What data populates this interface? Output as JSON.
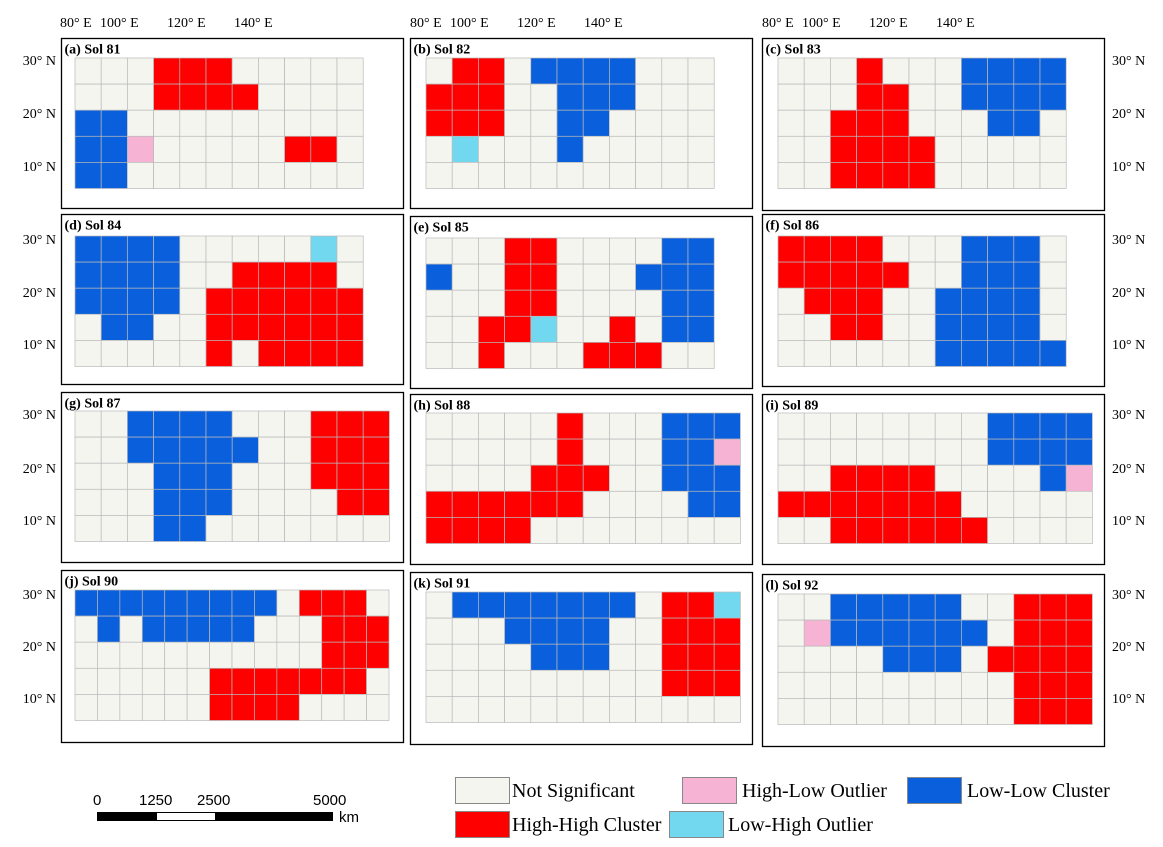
{
  "colors": {
    "NS": "#f5f5f0",
    "HH": "#ff0000",
    "HL": "#f7b3d4",
    "LL": "#0a5fdc",
    "LH": "#72d8f0",
    "grid": "#b9b9b9",
    "frame": "#000000"
  },
  "axes": {
    "lon_labels": [
      "80° E",
      "100° E",
      "120° E",
      "140° E"
    ],
    "lat_labels": [
      "30° N",
      "20° N",
      "10° N"
    ]
  },
  "panels": [
    {
      "title": "(a) Sol 81",
      "grid": [
        "...HHH.....",
        "...HHHH....",
        "LL.........",
        "LLP.....HH.",
        "LL........."
      ]
    },
    {
      "title": "(b) Sol 82",
      "grid": [
        ".HH.LLLL...",
        "HHH..LLL...",
        "HHH..LL....",
        ".C...L.....",
        "..........."
      ]
    },
    {
      "title": "(c) Sol 83",
      "grid": [
        "...H...LLLL",
        "...HH..LLLL",
        "..HHH...LL.",
        "..HHHH.....",
        "..HHHH....."
      ]
    },
    {
      "title": "(d) Sol 84",
      "grid": [
        "LLLL.....C.",
        "LLLL..HHHH.",
        "LLLL.HHHHHH",
        ".LL..HHHHHH",
        ".....H.HHHH"
      ]
    },
    {
      "title": "(e) Sol 85",
      "grid": [
        "...HH....LL",
        "L..HH...LLL",
        "...HH....LL",
        "..HHC..H.LL",
        "..H...HHH.."
      ]
    },
    {
      "title": "(f) Sol 86",
      "grid": [
        "HHHH...LLL.",
        "HHHHH..LLL.",
        ".HHH..LLLL.",
        "..HH..LLLL.",
        "......LLLLL"
      ]
    },
    {
      "title": "(g) Sol 87",
      "grid": [
        "..LLLL...HHH",
        "..LLLLL..HHH",
        "...LLL...HHH",
        "...LLL....HH",
        "...LL......."
      ]
    },
    {
      "title": "(h) Sol 88",
      "grid": [
        ".....H...LLL",
        ".....H...LLP",
        "....HHH..LLL",
        "HHHHHH....LL",
        "HHHH........"
      ]
    },
    {
      "title": "(i) Sol 89",
      "grid": [
        "........LLLL",
        "........LLLL",
        "..HHHH....LP",
        "HHHHHHH.....",
        "..HHHHHH...."
      ]
    },
    {
      "title": "(j) Sol 90",
      "grid": [
        "LLLLLLLLL.HHH.",
        ".L.LLLLL...HHH",
        "...........HHH",
        "......HHHHHHH.",
        "......HHHH...."
      ]
    },
    {
      "title": "(k) Sol 91",
      "grid": [
        ".LLLLLLL.HHC",
        "...LLLL..HHH",
        "....LLL..HHH",
        ".........HHH",
        "............"
      ]
    },
    {
      "title": "(l) Sol 92",
      "grid": [
        "..LLLLL..HHH",
        ".PLLLLLL.HHH",
        "....LLL.HHHH",
        ".........HHH",
        ".........HHH"
      ]
    }
  ],
  "legend": {
    "items": [
      {
        "key": "NS",
        "label": "Not Significant"
      },
      {
        "key": "HL",
        "label": "High-Low Outlier"
      },
      {
        "key": "LL",
        "label": "Low-Low Cluster"
      },
      {
        "key": "HH",
        "label": "High-High Cluster"
      },
      {
        "key": "LH",
        "label": "Low-High Outlier"
      }
    ]
  },
  "scalebar": {
    "labels": [
      "0",
      "1250",
      "2500",
      "5000"
    ],
    "unit": "km"
  }
}
